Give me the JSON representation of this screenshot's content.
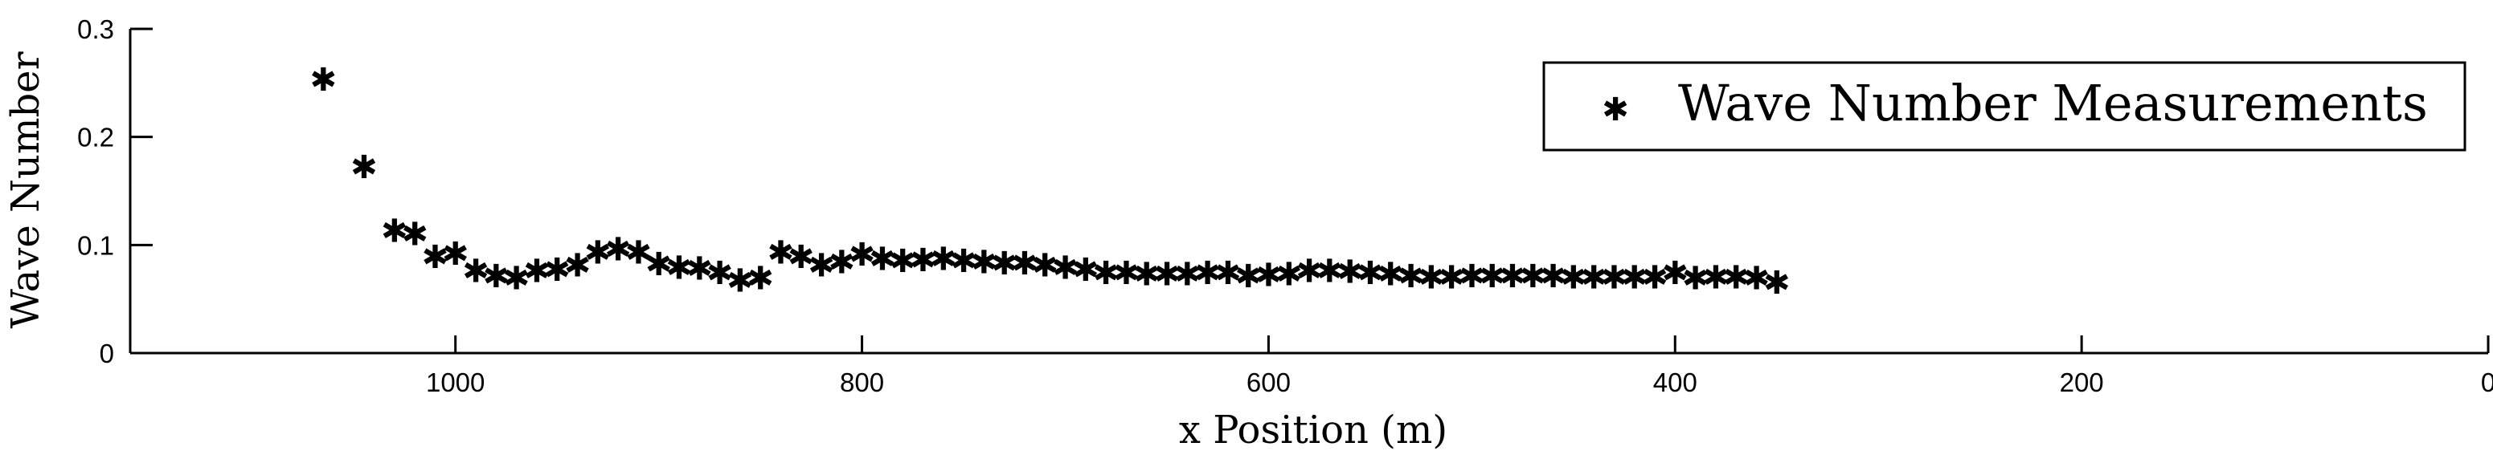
{
  "chart_data": {
    "type": "scatter",
    "xlabel": "x Position (m)",
    "ylabel": "Wave Number",
    "xlim": [
      1160,
      0
    ],
    "ylim": [
      0,
      0.3
    ],
    "x_reversed": true,
    "xticks": [
      1000,
      800,
      600,
      400,
      200,
      0
    ],
    "yticks": [
      0,
      0.1,
      0.2,
      0.3
    ],
    "xtick_labels": [
      "1000",
      "800",
      "600",
      "400",
      "200",
      "0"
    ],
    "ytick_labels": [
      "0",
      "0.1",
      "0.2",
      "0.3"
    ],
    "legend": {
      "entries": [
        "Wave Number Measurements"
      ],
      "position": "top-right"
    },
    "grid": false,
    "marker": "*",
    "marker_color": "#000000",
    "series": [
      {
        "name": "Wave Number Measurements",
        "x": [
          1065,
          1045,
          1030,
          1020,
          1010,
          1000,
          990,
          980,
          970,
          960,
          950,
          940,
          930,
          920,
          910,
          900,
          890,
          880,
          870,
          860,
          850,
          840,
          830,
          820,
          810,
          800,
          790,
          780,
          770,
          760,
          750,
          740,
          730,
          720,
          710,
          700,
          690,
          680,
          670,
          660,
          650,
          640,
          630,
          620,
          610,
          600,
          590,
          580,
          570,
          560,
          550,
          540,
          530,
          520,
          510,
          500,
          490,
          480,
          470,
          460,
          450,
          440,
          430,
          420,
          410,
          400,
          390,
          380,
          370,
          360,
          350
        ],
        "y": [
          0.254,
          0.173,
          0.114,
          0.111,
          0.09,
          0.093,
          0.077,
          0.072,
          0.07,
          0.077,
          0.078,
          0.082,
          0.094,
          0.097,
          0.094,
          0.083,
          0.08,
          0.079,
          0.075,
          0.068,
          0.07,
          0.094,
          0.09,
          0.082,
          0.085,
          0.092,
          0.088,
          0.086,
          0.087,
          0.088,
          0.086,
          0.085,
          0.084,
          0.084,
          0.082,
          0.08,
          0.078,
          0.075,
          0.075,
          0.074,
          0.074,
          0.074,
          0.075,
          0.075,
          0.072,
          0.073,
          0.074,
          0.077,
          0.077,
          0.076,
          0.075,
          0.074,
          0.072,
          0.071,
          0.071,
          0.072,
          0.072,
          0.072,
          0.072,
          0.072,
          0.071,
          0.071,
          0.071,
          0.071,
          0.071,
          0.075,
          0.07,
          0.071,
          0.071,
          0.07,
          0.066
        ]
      }
    ]
  }
}
